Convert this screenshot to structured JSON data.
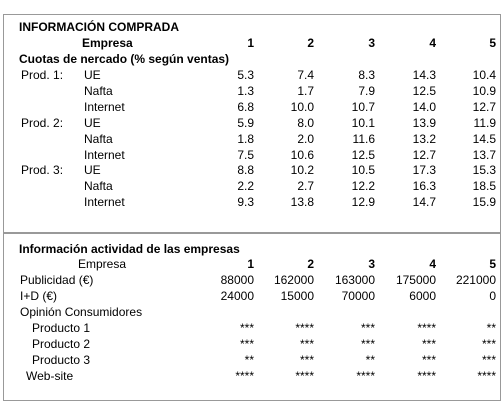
{
  "purchased": {
    "title": "INFORMACIÓN COMPRADA",
    "header": {
      "label": "Empresa",
      "companies": [
        "1",
        "2",
        "3",
        "4",
        "5"
      ]
    },
    "subtitle": "Cuotas de nercado (% según ventas)",
    "groups": [
      {
        "product": "Prod. 1:",
        "rows": [
          {
            "region": "UE",
            "values": [
              "5.3",
              "7.4",
              "8.3",
              "14.3",
              "10.4"
            ]
          },
          {
            "region": "Nafta",
            "values": [
              "1.3",
              "1.7",
              "7.9",
              "12.5",
              "10.9"
            ]
          },
          {
            "region": "Internet",
            "values": [
              "6.8",
              "10.0",
              "10.7",
              "14.0",
              "12.7"
            ]
          }
        ]
      },
      {
        "product": "Prod. 2:",
        "rows": [
          {
            "region": "UE",
            "values": [
              "5.9",
              "8.0",
              "10.1",
              "13.9",
              "11.9"
            ]
          },
          {
            "region": "Nafta",
            "values": [
              "1.8",
              "2.0",
              "11.6",
              "13.2",
              "14.5"
            ]
          },
          {
            "region": "Internet",
            "values": [
              "7.5",
              "10.6",
              "12.5",
              "12.7",
              "13.7"
            ]
          }
        ]
      },
      {
        "product": "Prod. 3:",
        "rows": [
          {
            "region": "UE",
            "values": [
              "8.8",
              "10.2",
              "10.5",
              "17.3",
              "15.3"
            ]
          },
          {
            "region": "Nafta",
            "values": [
              "2.2",
              "2.7",
              "12.2",
              "16.3",
              "18.5"
            ]
          },
          {
            "region": "Internet",
            "values": [
              "9.3",
              "13.8",
              "12.9",
              "14.7",
              "15.9"
            ]
          }
        ]
      }
    ]
  },
  "activity": {
    "title": "Información actividad de las empresas",
    "header": {
      "label": "Empresa",
      "companies": [
        "1",
        "2",
        "3",
        "4",
        "5"
      ]
    },
    "rows": [
      {
        "label": "Publicidad (€)",
        "values": [
          "88000",
          "162000",
          "163000",
          "175000",
          "221000"
        ]
      },
      {
        "label": "I+D (€)",
        "values": [
          "24000",
          "15000",
          "70000",
          "6000",
          "0"
        ]
      }
    ],
    "opinion": {
      "label": "Opinión Consumidores",
      "rows": [
        {
          "label": "Producto 1",
          "values": [
            "***",
            "****",
            "***",
            "****",
            "**"
          ]
        },
        {
          "label": "Producto 2",
          "values": [
            "***",
            "***",
            "***",
            "***",
            "***"
          ]
        },
        {
          "label": "Producto 3",
          "values": [
            "**",
            "***",
            "**",
            "***",
            "***"
          ]
        }
      ]
    },
    "website": {
      "label": "Web-site",
      "values": [
        "****",
        "****",
        "****",
        "****",
        "****"
      ]
    }
  }
}
